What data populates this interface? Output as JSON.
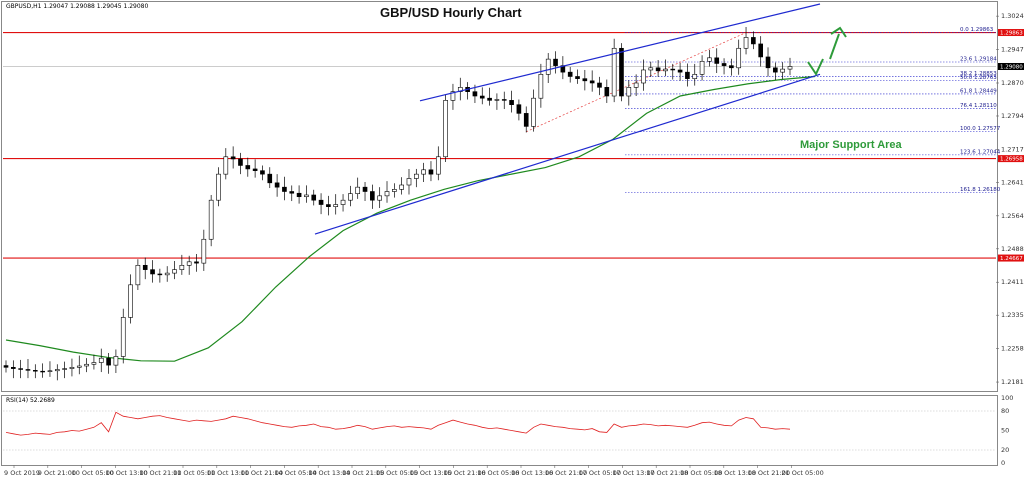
{
  "chart_data": {
    "type": "candlestick",
    "symbol_header": "GBPUSD,H1  1.29047 1.29088 1.29045 1.29080",
    "title": "GBP/USD Hourly Chart",
    "ylim": [
      1.2165,
      1.3052
    ],
    "y_ticks": [
      1.3024,
      1.2947,
      1.287,
      1.2794,
      1.2717,
      1.2641,
      1.2564,
      1.2488,
      1.2411,
      1.2335,
      1.2258,
      1.2181
    ],
    "y_tick_labels": [
      "1.30240",
      "1.29470",
      "1.28700",
      "1.27940",
      "1.27170",
      "1.26410",
      "1.25640",
      "1.24880",
      "1.24110",
      "1.23350",
      "1.22580",
      "1.21810"
    ],
    "x_tick_labels": [
      "9 Oct 2019",
      "9 Oct 21:00",
      "10 Oct 05:00",
      "10 Oct 13:00",
      "10 Oct 21:00",
      "11 Oct 05:00",
      "11 Oct 13:00",
      "11 Oct 21:00",
      "14 Oct 05:00",
      "14 Oct 13:00",
      "14 Oct 21:00",
      "15 Oct 05:00",
      "15 Oct 13:00",
      "15 Oct 21:00",
      "16 Oct 05:00",
      "16 Oct 13:00",
      "16 Oct 21:00",
      "17 Oct 05:00",
      "17 Oct 13:00",
      "17 Oct 21:00",
      "18 Oct 05:00",
      "18 Oct 13:00",
      "18 Oct 21:00",
      "21 Oct 05:00"
    ],
    "closes": [
      1.2215,
      1.2212,
      1.221,
      1.2208,
      1.2206,
      1.2205,
      1.2207,
      1.221,
      1.2212,
      1.2215,
      1.2218,
      1.2222,
      1.2226,
      1.2236,
      1.222,
      1.224,
      1.233,
      1.2405,
      1.245,
      1.244,
      1.243,
      1.2428,
      1.2432,
      1.244,
      1.245,
      1.2458,
      1.2455,
      1.251,
      1.26,
      1.266,
      1.27,
      1.2695,
      1.268,
      1.2672,
      1.2668,
      1.266,
      1.264,
      1.263,
      1.262,
      1.2616,
      1.2608,
      1.2612,
      1.26,
      1.259,
      1.2585,
      1.259,
      1.26,
      1.2615,
      1.263,
      1.262,
      1.26,
      1.261,
      1.262,
      1.2625,
      1.2635,
      1.265,
      1.266,
      1.267,
      1.266,
      1.27,
      1.283,
      1.285,
      1.286,
      1.285,
      1.284,
      1.2835,
      1.283,
      1.2832,
      1.283,
      1.282,
      1.28,
      1.277,
      1.2835,
      1.289,
      1.2925,
      1.291,
      1.2895,
      1.2885,
      1.288,
      1.2875,
      1.287,
      1.286,
      1.284,
      1.295,
      1.284,
      1.286,
      1.287,
      1.29,
      1.2905,
      1.2898,
      1.2902,
      1.29,
      1.2895,
      1.288,
      1.289,
      1.292,
      1.2928,
      1.2915,
      1.291,
      1.2905,
      1.295,
      1.2975,
      1.296,
      1.293,
      1.2905,
      1.2895,
      1.2902,
      1.2908
    ],
    "ma_series": {
      "name": "",
      "values": [
        1.2278,
        1.2265,
        1.225,
        1.2238,
        1.223,
        1.2229,
        1.226,
        1.232,
        1.24,
        1.247,
        1.253,
        1.257,
        1.26,
        1.2625,
        1.2645,
        1.266,
        1.2675,
        1.27,
        1.274,
        1.28,
        1.284,
        1.2855,
        1.2868,
        1.2878,
        1.2885
      ]
    },
    "horizontal_levels": [
      {
        "price": 1.29863,
        "label": "1.29863"
      },
      {
        "price": 1.26958,
        "label": "1.26958"
      },
      {
        "price": 1.24667,
        "label": "1.24667"
      }
    ],
    "current_price": {
      "price": 1.2908,
      "label": "1.29080"
    },
    "fibonacci": [
      {
        "label": "0.0  1.29863",
        "price": 1.29863
      },
      {
        "label": "23.6  1.29184",
        "price": 1.29184
      },
      {
        "label": "38.2  1.28853",
        "price": 1.28853
      },
      {
        "label": "50.0  1.28763",
        "price": 1.28763
      },
      {
        "label": "61.8  1.28449",
        "price": 1.28449
      },
      {
        "label": "76.4  1.28110",
        "price": 1.2811
      },
      {
        "label": "100.0  1.27577",
        "price": 1.27577
      },
      {
        "label": "123.6  1.27044",
        "price": 1.27044
      },
      {
        "label": "161.8  1.26180",
        "price": 1.2618
      }
    ],
    "channel_upper": [
      [
        1.2829,
        1.3
      ]
    ],
    "annotation": "Major Support Area",
    "rsi": {
      "label": "RSI(14) 52.2689",
      "ylim": [
        0,
        100
      ],
      "y_tick_labels": [
        "100",
        "80",
        "50",
        "20",
        "0"
      ],
      "y_ticks": [
        100,
        80,
        50,
        20,
        0
      ],
      "values": [
        47,
        45,
        43,
        44,
        46,
        45,
        44,
        47,
        48,
        50,
        49,
        52,
        55,
        62,
        48,
        78,
        72,
        70,
        68,
        70,
        72,
        73,
        70,
        68,
        66,
        64,
        66,
        65,
        64,
        66,
        68,
        72,
        70,
        68,
        65,
        62,
        60,
        58,
        56,
        55,
        57,
        58,
        60,
        56,
        55,
        52,
        53,
        55,
        58,
        56,
        52,
        54,
        56,
        57,
        55,
        56,
        55,
        54,
        52,
        58,
        62,
        66,
        63,
        60,
        58,
        55,
        53,
        54,
        52,
        50,
        48,
        46,
        55,
        60,
        58,
        56,
        55,
        53,
        52,
        51,
        53,
        48,
        47,
        60,
        55,
        57,
        58,
        60,
        59,
        57,
        58,
        57,
        56,
        55,
        58,
        62,
        63,
        60,
        58,
        57,
        66,
        70,
        68,
        55,
        54,
        52,
        53,
        52
      ]
    }
  }
}
